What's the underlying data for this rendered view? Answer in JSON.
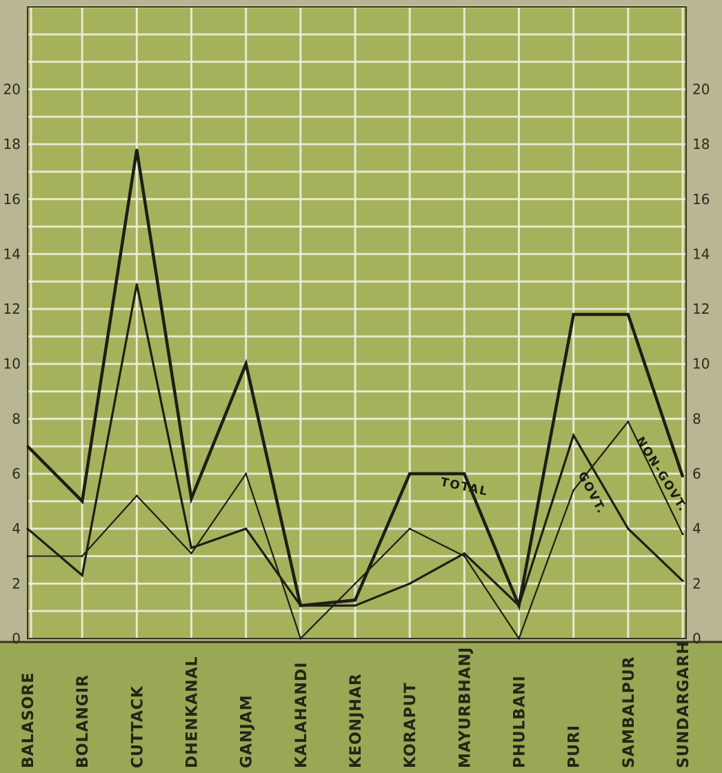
{
  "colors": {
    "paper": "#b8b693",
    "plot_background": "#a6b15c",
    "label_band": "#99a855",
    "grid": "#eef0dc",
    "series_line": "#1e1e16"
  },
  "chart_data": {
    "type": "line",
    "title": "",
    "xlabel": "",
    "ylabel": "",
    "ylim": [
      0,
      23
    ],
    "yticks": [
      "0",
      "2",
      "4",
      "6",
      "8",
      "10",
      "12",
      "14",
      "16",
      "18",
      "20"
    ],
    "grid": true,
    "categories": [
      "BALASORE",
      "BOLANGIR",
      "CUTTACK",
      "DHENKANAL",
      "GANJAM",
      "KALAHANDI",
      "KEONJHAR",
      "KORAPUT",
      "MAYURBHANJ",
      "PHULBANI",
      "PURI",
      "SAMBALPUR",
      "SUNDARGARH"
    ],
    "series": [
      {
        "name": "TOTAL",
        "values": [
          7,
          5,
          17.8,
          5.1,
          10,
          1.2,
          1.4,
          6,
          6,
          1.2,
          11.8,
          11.8,
          5.9
        ]
      },
      {
        "name": "GOVT.",
        "values": [
          4,
          2.3,
          12.9,
          3.3,
          4,
          1.2,
          1.2,
          2,
          3.1,
          1.2,
          7.4,
          4,
          2.1
        ]
      },
      {
        "name": "NON-GOVT.",
        "values": [
          3,
          3,
          5.2,
          3.1,
          6,
          0,
          2,
          4,
          3,
          0,
          5.4,
          7.9,
          3.8
        ]
      }
    ],
    "annotations": [
      "TOTAL",
      "GOVT.",
      "NON-GOVT."
    ]
  }
}
